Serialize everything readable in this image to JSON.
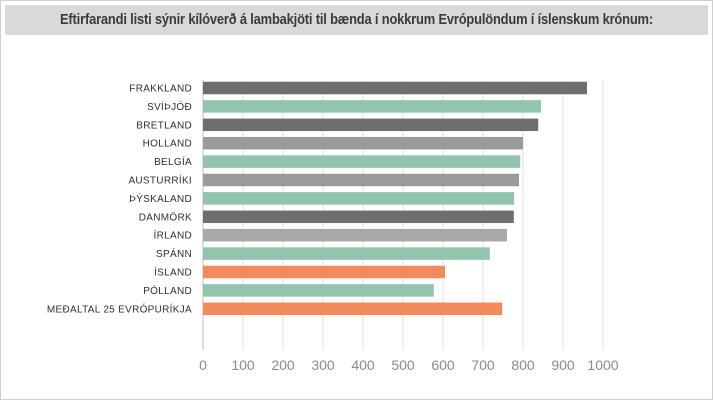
{
  "chart_data": {
    "type": "bar",
    "orientation": "horizontal",
    "title": "Eftirfarandi listi sýnir kílóverð á lambakjöti til bænda í nokkrum Evrópulöndum í íslenskum krónum:",
    "categories": [
      "FRAKKLAND",
      "SVÍÞJÓÐ",
      "BRETLAND",
      "HOLLAND",
      "BELGÍA",
      "AUSTURRÍKI",
      "ÞÝSKALAND",
      "DANMÖRK",
      "ÍRLAND",
      "SPÁNN",
      "ÍSLAND",
      "PÓLLAND",
      "MEÐALTAL 25 EVRÓPURÍKJA"
    ],
    "values": [
      960,
      845,
      838,
      800,
      793,
      790,
      778,
      777,
      760,
      717,
      605,
      577,
      748
    ],
    "bar_colors": [
      "#6e6e6e",
      "#92c4ae",
      "#6e6e6e",
      "#9a9a9a",
      "#92c4ae",
      "#9a9a9a",
      "#92c4ae",
      "#6e6e6e",
      "#a8a8a8",
      "#92c4ae",
      "#f28a5c",
      "#92c4ae",
      "#f28a5c"
    ],
    "xlim": [
      0,
      1000
    ],
    "xticks": [
      0,
      100,
      200,
      300,
      400,
      500,
      600,
      700,
      800,
      900,
      1000
    ],
    "xlabel": "",
    "ylabel": "",
    "grid": true,
    "legend": "none"
  }
}
